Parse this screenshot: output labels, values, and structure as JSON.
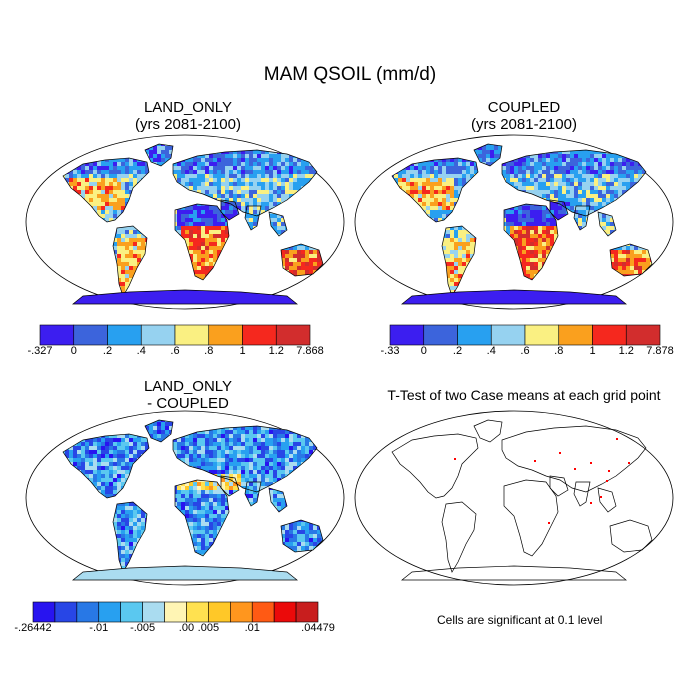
{
  "figure": {
    "title": "MAM QSOIL (mm/d)",
    "note": "Cells are significant at 0.1 level"
  },
  "panels": {
    "land_only": {
      "title_line1": "LAND_ONLY",
      "title_line2": "(yrs 2081-2100)"
    },
    "coupled": {
      "title_line1": "COUPLED",
      "title_line2": "(yrs 2081-2100)"
    },
    "difference": {
      "title_line1": "LAND_ONLY",
      "title_line2": "- COUPLED"
    },
    "ttest": {
      "title": "T-Test of two Case means at each grid point"
    }
  },
  "colorbars": {
    "land_only": {
      "colors": [
        "#3c1ef0",
        "#3c64dc",
        "#28a0f0",
        "#96d2f0",
        "#faf082",
        "#faa01e",
        "#f5281e",
        "#d22d2d"
      ],
      "labels": [
        "-.327",
        "0",
        ".2",
        ".4",
        ".6",
        ".8",
        "1",
        "1.2",
        "7.868"
      ]
    },
    "coupled": {
      "colors": [
        "#3c1ef0",
        "#3c64dc",
        "#28a0f0",
        "#96d2f0",
        "#faf082",
        "#faa01e",
        "#f5281e",
        "#d22d2d"
      ],
      "labels": [
        "-.33",
        "0",
        ".2",
        ".4",
        ".6",
        ".8",
        "1",
        "1.2",
        "7.878"
      ]
    },
    "difference": {
      "colors": [
        "#2814f0",
        "#2846e6",
        "#2878e6",
        "#28a0f0",
        "#5ac8f0",
        "#aadcf0",
        "#fff5b4",
        "#ffe150",
        "#ffc828",
        "#ff961e",
        "#ff5a14",
        "#eb0a0a",
        "#c81e1e"
      ],
      "labels": [
        "-.26442",
        "-.01",
        "-.005",
        ".00",
        ".005",
        ".01",
        ".04479"
      ]
    }
  },
  "colors": {
    "ocean": "#ffffff",
    "coastline": "#000000",
    "significant": "#ff0000",
    "antarctica_main": "#3c1ef0",
    "antarctica_diff": "#aadcf0"
  }
}
